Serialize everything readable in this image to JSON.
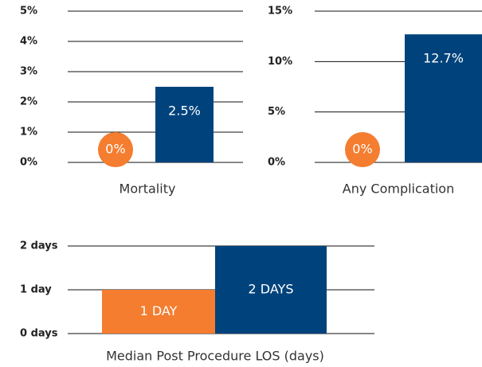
{
  "chart_data": [
    {
      "type": "bar",
      "title": "Mortality",
      "categories": [
        null,
        null
      ],
      "values": [
        0,
        2.5
      ],
      "value_labels": [
        "0%",
        "2.5%"
      ],
      "colors": [
        "#f47d30",
        "#00437c"
      ],
      "ylim": [
        0,
        5
      ],
      "yticks": [
        {
          "value": 0,
          "label": "0%"
        },
        {
          "value": 1,
          "label": "1%"
        },
        {
          "value": 2,
          "label": "2%"
        },
        {
          "value": 3,
          "label": "3%"
        },
        {
          "value": 4,
          "label": "4%"
        },
        {
          "value": 5,
          "label": "5%"
        }
      ],
      "grid": true
    },
    {
      "type": "bar",
      "title": "Any Complication",
      "categories": [
        null,
        null
      ],
      "values": [
        0,
        12.7
      ],
      "value_labels": [
        "0%",
        "12.7%"
      ],
      "colors": [
        "#f47d30",
        "#00437c"
      ],
      "ylim": [
        0,
        15
      ],
      "yticks": [
        {
          "value": 0,
          "label": "0%"
        },
        {
          "value": 5,
          "label": "5%"
        },
        {
          "value": 10,
          "label": "10%"
        },
        {
          "value": 15,
          "label": "15%"
        }
      ],
      "grid": true
    },
    {
      "type": "bar",
      "title": "Median Post Procedure LOS (days)",
      "categories": [
        null,
        null
      ],
      "values": [
        1,
        2
      ],
      "value_labels": [
        "1 DAY",
        "2 DAYS"
      ],
      "colors": [
        "#f47d30",
        "#00437c"
      ],
      "ylim": [
        0,
        2
      ],
      "yticks": [
        {
          "value": 0,
          "label": "0 days"
        },
        {
          "value": 1,
          "label": "1 day"
        },
        {
          "value": 2,
          "label": "2 days"
        }
      ],
      "grid": true
    }
  ]
}
